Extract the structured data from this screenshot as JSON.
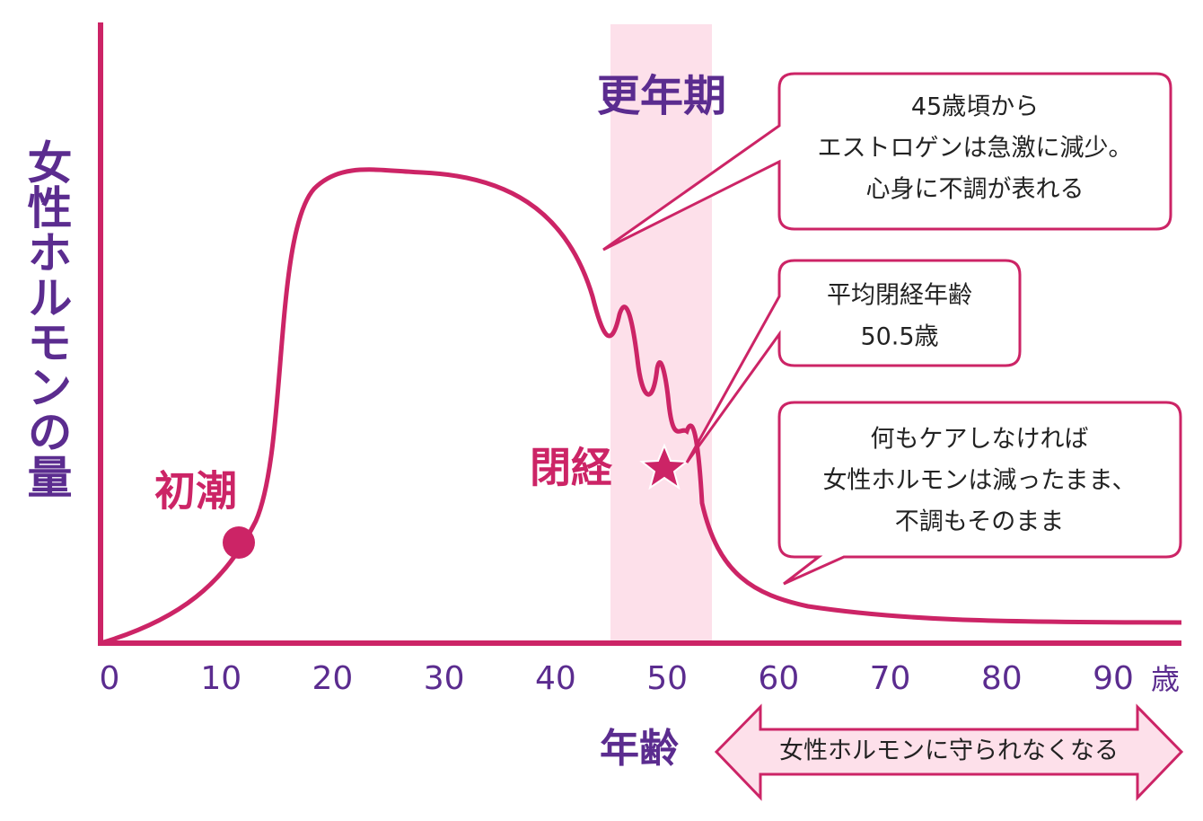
{
  "y_axis_label": "女性ホルモンの量",
  "x_axis": {
    "ticks": [
      0,
      10,
      20,
      30,
      40,
      50,
      60,
      70,
      80,
      90
    ],
    "unit": "歳",
    "title": "年齢"
  },
  "band_label": "更年期",
  "markers": {
    "menarche": "初潮",
    "menopause": "閉経"
  },
  "callouts": [
    {
      "lines": [
        "45歳頃から",
        "エストロゲンは急激に減少。",
        "心身に不調が表れる"
      ]
    },
    {
      "lines": [
        "平均閉経年齢",
        "50.5歳"
      ]
    },
    {
      "lines": [
        "何もケアしなければ",
        "女性ホルモンは減ったまま、",
        "不調もそのまま"
      ]
    }
  ],
  "arrow_label": "女性ホルモンに守られなくなる"
}
